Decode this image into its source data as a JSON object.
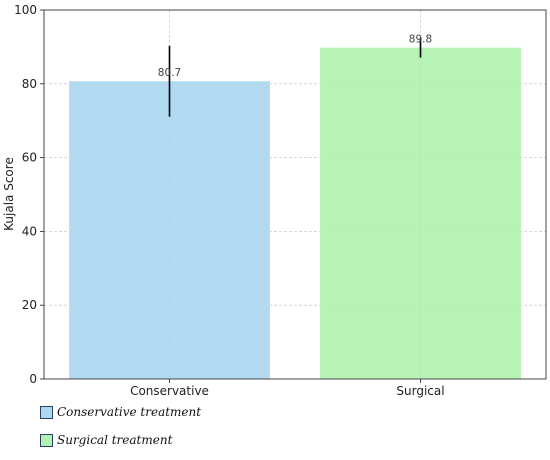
{
  "chart_data": {
    "type": "bar",
    "categories": [
      "Conservative",
      "Surgical"
    ],
    "values": [
      80.7,
      89.8
    ],
    "error": [
      9.6,
      2.7
    ],
    "data_labels": [
      "80.7",
      "89.8"
    ],
    "colors": [
      "#add8ef",
      "#b2f2b0"
    ],
    "xlabel": "",
    "ylabel": "Kujala Score",
    "ylim": [
      0,
      100
    ],
    "yticks": [
      0,
      20,
      40,
      60,
      80,
      100
    ],
    "grid": true,
    "legend": {
      "placement": "bottom-left",
      "entries": [
        {
          "label": "Conservative treatment",
          "color": "#add8ef"
        },
        {
          "label": "Surgical treatment",
          "color": "#b2f2b0"
        }
      ]
    }
  }
}
